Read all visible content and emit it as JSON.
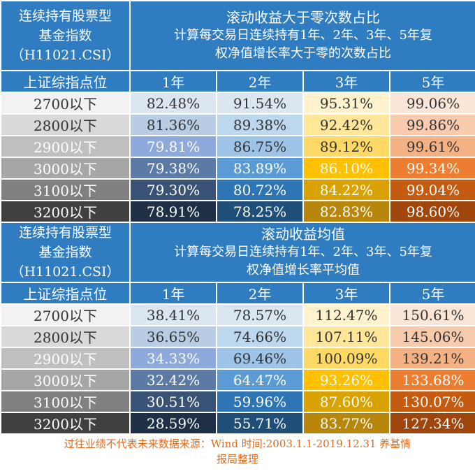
{
  "tables": [
    {
      "left_header": [
        "连续持有股票型",
        "基金指数",
        "（H11021.CSI）"
      ],
      "right_header": [
        "滚动收益大于零次数占比",
        "计算每交易日连续持有1年、2年、3年、5年复",
        "权净值增长率大于零的次数占比"
      ],
      "col_headers": [
        "上证综指点位",
        "1年",
        "2年",
        "3年",
        "5年"
      ],
      "rows": [
        {
          "label": "2700以下",
          "values": [
            "82.48%",
            "91.54%",
            "95.31%",
            "99.06%"
          ]
        },
        {
          "label": "2800以下",
          "values": [
            "81.36%",
            "89.38%",
            "92.42%",
            "99.86%"
          ]
        },
        {
          "label": "2900以下",
          "values": [
            "79.81%",
            "86.75%",
            "89.12%",
            "99.61%"
          ]
        },
        {
          "label": "3000以下",
          "values": [
            "79.38%",
            "83.89%",
            "86.10%",
            "99.34%"
          ]
        },
        {
          "label": "3100以下",
          "values": [
            "79.30%",
            "80.72%",
            "84.22%",
            "99.04%"
          ]
        },
        {
          "label": "3200以下",
          "values": [
            "78.91%",
            "78.25%",
            "82.83%",
            "98.60%"
          ]
        }
      ]
    },
    {
      "left_header": [
        "连续持有股票型",
        "基金指数",
        "（H11021.CSI）"
      ],
      "right_header": [
        "滚动收益均值",
        "计算每交易日连续持有1年、2年、3年、5年复",
        "权净值增长率平均值"
      ],
      "col_headers": [
        "上证综指点位",
        "1年",
        "2年",
        "3年",
        "5年"
      ],
      "rows": [
        {
          "label": "2700以下",
          "values": [
            "38.41%",
            "78.57%",
            "112.47%",
            "150.61%"
          ]
        },
        {
          "label": "2800以下",
          "values": [
            "36.65%",
            "74.66%",
            "107.11%",
            "145.06%"
          ]
        },
        {
          "label": "2900以下",
          "values": [
            "34.33%",
            "69.46%",
            "100.09%",
            "139.21%"
          ]
        },
        {
          "label": "3000以下",
          "values": [
            "32.42%",
            "64.47%",
            "93.26%",
            "133.68%"
          ]
        },
        {
          "label": "3100以下",
          "values": [
            "30.51%",
            "59.96%",
            "87.60%",
            "130.07%"
          ]
        },
        {
          "label": "3200以下",
          "values": [
            "28.59%",
            "55.71%",
            "83.77%",
            "127.34%"
          ]
        }
      ]
    }
  ],
  "footer": [
    "过往业绩不代表未来数据来源：Wind 时间:2003.1.1-2019.12.31 养基情",
    "报局整理"
  ],
  "colors": {
    "header_bg": "#2f7dc0",
    "label_col": [
      "#f2f2f2",
      "#d9d9d9",
      "#bfbfbf",
      "#a6a6a6",
      "#808080",
      "#404040"
    ],
    "col1": [
      "#dce6f1",
      "#b8cce4",
      "#8ea9db",
      "#5b7ba6",
      "#3a5275",
      "#1f2f45"
    ],
    "col2": [
      "#dce6f1",
      "#bdd7ee",
      "#9dc3e6",
      "#5b9bd5",
      "#2e75b6",
      "#1f4e79"
    ],
    "col3": [
      "#fff2cc",
      "#ffe699",
      "#ffd966",
      "#ffc000",
      "#d9a200",
      "#b8860b"
    ],
    "col4": [
      "#fbe5d6",
      "#f8cbad",
      "#f4b183",
      "#ed7d31",
      "#c55a11",
      "#a0450b"
    ]
  }
}
